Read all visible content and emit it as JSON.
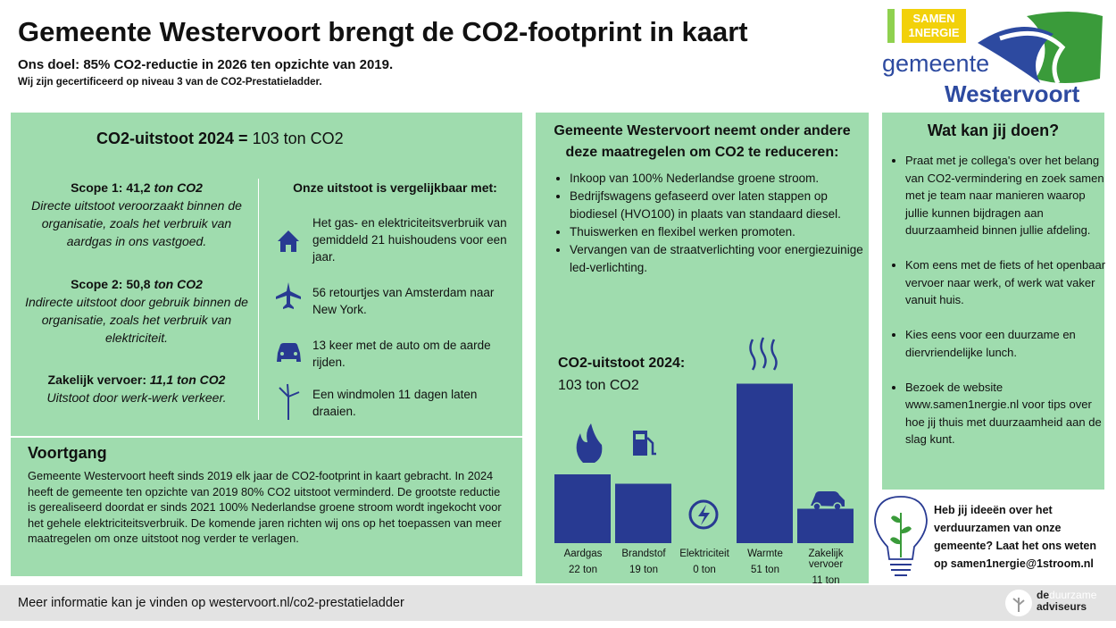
{
  "header": {
    "title": "Gemeente Westervoort brengt de CO2-footprint in kaart",
    "subtitle": "Ons doel: 85% CO2-reductie in 2026 ten opzichte van 2019.",
    "note": "Wij zijn gecertificeerd op niveau 3 van de CO2-Prestatieladder."
  },
  "logo": {
    "samen": "SAMEN",
    "energie": "1NERGIE",
    "gemeente": "gemeente",
    "name": "Westervoort"
  },
  "left": {
    "headline": "CO2-uitstoot 2024 =",
    "headline_value": "103 ton CO2",
    "scopes": [
      {
        "title": "Scope 1: 41,2",
        "unit": "ton CO2",
        "text": "Directe uitstoot veroorzaakt binnen de organisatie, zoals het verbruik van aardgas in ons vastgoed."
      },
      {
        "title": "Scope 2: 50,8",
        "unit": "ton CO2",
        "text": "Indirecte uitstoot door gebruik binnen de organisatie, zoals het verbruik van elektriciteit."
      },
      {
        "title": "Zakelijk vervoer:",
        "unit": "11,1 ton CO2",
        "text": "Uitstoot door werk-werk verkeer."
      }
    ],
    "compare_heading": "Onze uitstoot is vergelijkbaar met:",
    "compare": [
      "Het gas- en elektriciteitsverbruik van gemiddeld 21 huishoudens voor een jaar.",
      "56 retourtjes van Amsterdam naar New York.",
      "13 keer met de auto om de aarde rijden.",
      "Een windmolen 11 dagen laten draaien."
    ],
    "voortgang_title": "Voortgang",
    "voortgang_text": "Gemeente Westervoort heeft sinds 2019 elk jaar de CO2-footprint in kaart gebracht. In 2024 heeft de gemeente ten opzichte van 2019 80% CO2 uitstoot verminderd. De grootste reductie is gerealiseerd doordat er sinds 2021 100% Nederlandse groene stroom wordt ingekocht voor het gehele elektriciteitsverbruik. De komende jaren richten wij ons op het toepassen van meer maatregelen om onze uitstoot nog verder te verlagen."
  },
  "middle": {
    "heading": "Gemeente Westervoort neemt onder andere deze maatregelen om CO2 te reduceren:",
    "measures": [
      "Inkoop van 100% Nederlandse groene stroom.",
      "Bedrijfswagens gefaseerd over laten stappen op biodiesel (HVO100) in plaats van standaard diesel.",
      "Thuiswerken en flexibel werken promoten.",
      "Vervangen van de straatverlichting voor energiezuinige led-verlichting."
    ]
  },
  "chart_data": {
    "type": "bar",
    "title": "CO2-uitstoot 2024:",
    "subtitle": "103 ton CO2",
    "categories": [
      "Aardgas",
      "Brandstof",
      "Elektriciteit",
      "Warmte",
      "Zakelijk vervoer"
    ],
    "values": [
      22,
      19,
      0,
      51,
      11
    ],
    "value_labels": [
      "22 ton",
      "19 ton",
      "0 ton",
      "51 ton",
      "11 ton"
    ],
    "color": "#283a92",
    "ylim": [
      0,
      55
    ]
  },
  "right": {
    "heading": "Wat kan jij doen?",
    "tips": [
      "Praat met je collega's over het belang van CO2-vermindering en zoek samen met je team naar manieren waarop jullie kunnen bijdragen aan duurzaamheid binnen jullie afdeling.",
      "Kom eens met de fiets of het openbaar vervoer naar werk, of werk wat vaker vanuit huis.",
      "Kies eens voor een duurzame en diervriendelijke lunch.",
      "Bezoek de website www.samen1nergie.nl voor tips over hoe jij thuis met duurzaamheid aan de slag kunt."
    ],
    "idea": "Heb jij ideeën over het verduurzamen van onze gemeente? Laat het ons weten op samen1nergie@1stroom.nl"
  },
  "footer": {
    "text": "Meer informatie kan je vinden op westervoort.nl/co2-prestatieladder",
    "brand_de": "de",
    "brand_duurzame": "duurzame",
    "brand_adviseurs": "adviseurs"
  }
}
